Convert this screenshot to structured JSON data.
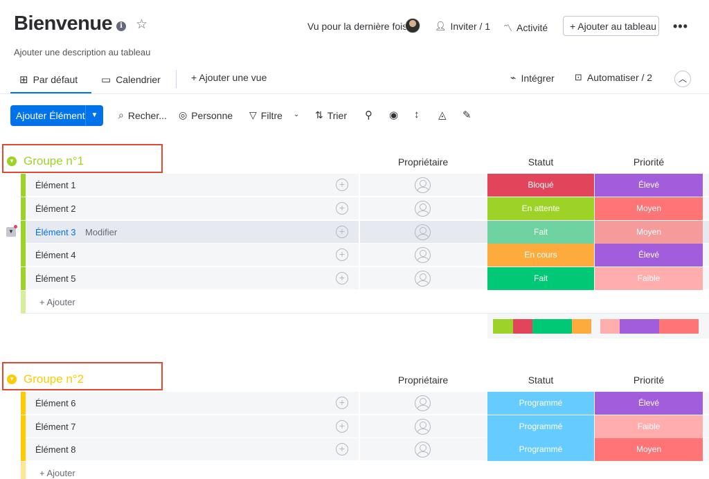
{
  "header": {
    "title": "Bienvenue",
    "description": "Ajouter une description au tableau",
    "last_seen_label": "Vu pour la dernière fois",
    "invite_label": "Inviter / 1",
    "activity_label": "Activité",
    "add_to_board_label": "+ Ajouter au tableau",
    "more_icon": "more-horizontal-icon"
  },
  "views": {
    "tabs": [
      {
        "label": "Par défaut",
        "icon": "table-home-icon",
        "active": true
      },
      {
        "label": "Calendrier",
        "icon": "calendar-icon",
        "active": false
      }
    ],
    "add_view_label": "+ Ajouter une vue",
    "integrate_label": "Intégrer",
    "automate_label": "Automatiser / 2"
  },
  "toolbar": {
    "add_item_label": "Ajouter Élément",
    "search_label": "Recher...",
    "person_label": "Personne",
    "filter_label": "Filtre",
    "sort_label": "Trier"
  },
  "columns": {
    "owner": "Propriétaire",
    "status": "Statut",
    "priority": "Priorité"
  },
  "groups": [
    {
      "title": "Groupe n°1",
      "color": "#9cd326",
      "items": [
        {
          "name": "Élément 1",
          "status": "Bloqué",
          "status_color": "#e2445c",
          "priority": "Élevé",
          "priority_color": "#a25ddc"
        },
        {
          "name": "Élément 2",
          "status": "En attente",
          "status_color": "#9cd326",
          "priority": "Moyen",
          "priority_color": "#ff7575"
        },
        {
          "name": "Élément 3",
          "edit_label": "Modifier",
          "status": "Fait",
          "status_color": "#6ed3a0",
          "priority": "Moyen",
          "priority_color": "#f59b9b"
        },
        {
          "name": "Élément 4",
          "status": "En cours",
          "status_color": "#fdab3d",
          "priority": "Élevé",
          "priority_color": "#a25ddc"
        },
        {
          "name": "Élément 5",
          "status": "Fait",
          "status_color": "#00c875",
          "priority": "Faible",
          "priority_color": "#ffadad"
        }
      ],
      "add_label": "+ Ajouter"
    },
    {
      "title": "Groupe n°2",
      "color": "#ffcb00",
      "items": [
        {
          "name": "Élément 6",
          "status": "Programmé",
          "status_color": "#66ccff",
          "priority": "Élevé",
          "priority_color": "#a25ddc"
        },
        {
          "name": "Élément 7",
          "status": "Programmé",
          "status_color": "#66ccff",
          "priority": "Faible",
          "priority_color": "#ffadad"
        },
        {
          "name": "Élément 8",
          "status": "Programmé",
          "status_color": "#66ccff",
          "priority": "Moyen",
          "priority_color": "#ff7575"
        }
      ],
      "add_label": "+ Ajouter"
    }
  ]
}
